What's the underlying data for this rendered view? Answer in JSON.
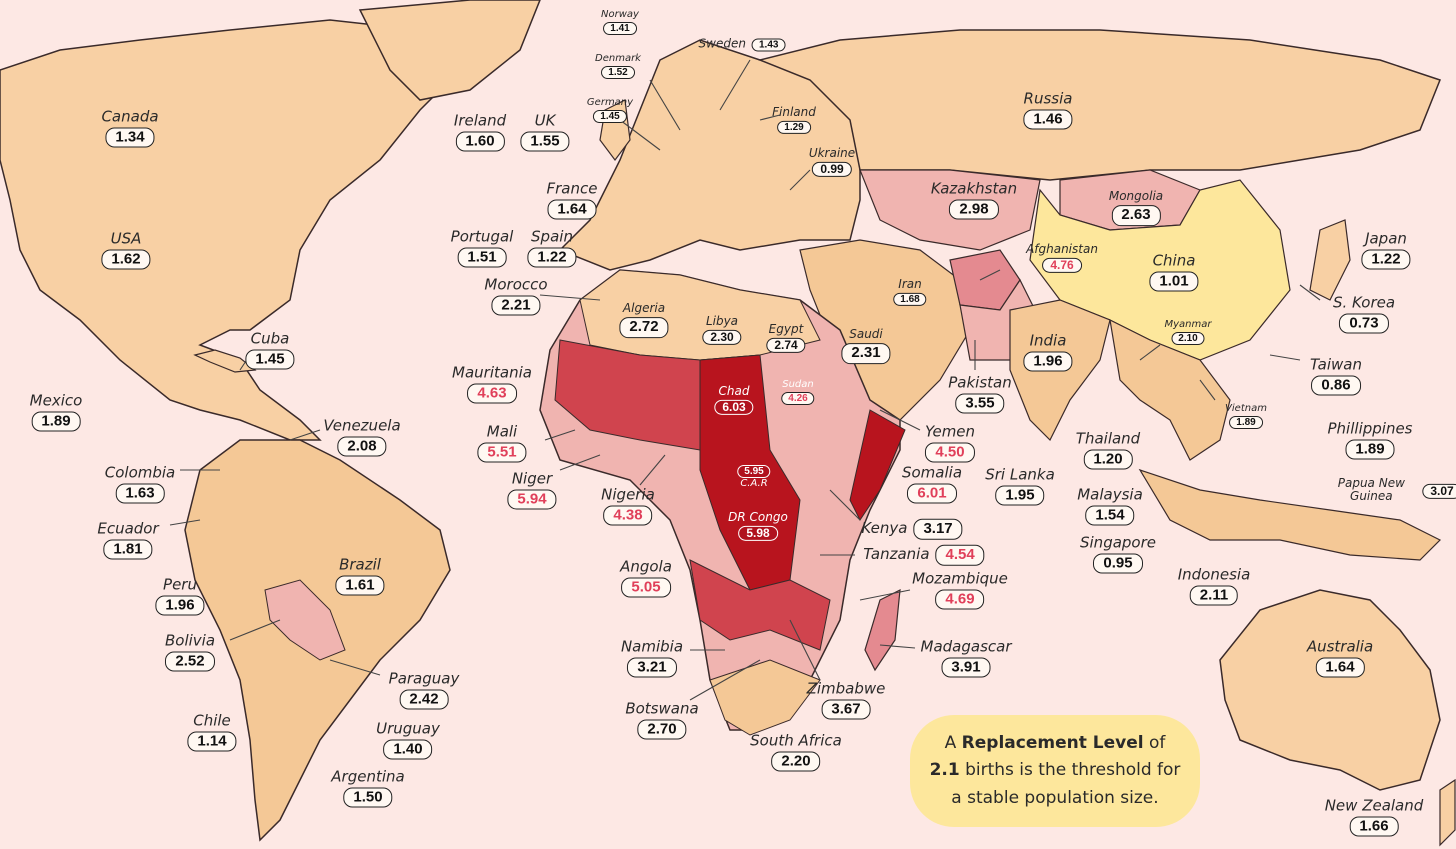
{
  "colors": {
    "ocean": "#fde8e4",
    "below_replacement": "#f8d0a4",
    "low": "#f4c896",
    "mid": "#f0b4b0",
    "high": "#e48a90",
    "very_high": "#d0444e",
    "extreme": "#b8141e",
    "border": "#3a2a2a",
    "callout": "#fde79c",
    "highlight_text": "#e0405a"
  },
  "countries": [
    {
      "name": "Canada",
      "value": "1.34"
    },
    {
      "name": "USA",
      "value": "1.62"
    },
    {
      "name": "Mexico",
      "value": "1.89"
    },
    {
      "name": "Cuba",
      "value": "1.45"
    },
    {
      "name": "Venezuela",
      "value": "2.08"
    },
    {
      "name": "Colombia",
      "value": "1.63"
    },
    {
      "name": "Ecuador",
      "value": "1.81"
    },
    {
      "name": "Peru",
      "value": "1.96"
    },
    {
      "name": "Brazil",
      "value": "1.61"
    },
    {
      "name": "Bolivia",
      "value": "2.52"
    },
    {
      "name": "Paraguay",
      "value": "2.42"
    },
    {
      "name": "Chile",
      "value": "1.14"
    },
    {
      "name": "Uruguay",
      "value": "1.40"
    },
    {
      "name": "Argentina",
      "value": "1.50"
    },
    {
      "name": "Norway",
      "value": "1.41"
    },
    {
      "name": "Denmark",
      "value": "1.52"
    },
    {
      "name": "Sweden",
      "value": "1.43"
    },
    {
      "name": "Germany",
      "value": "1.45"
    },
    {
      "name": "Finland",
      "value": "1.29"
    },
    {
      "name": "Ireland",
      "value": "1.60"
    },
    {
      "name": "UK",
      "value": "1.55"
    },
    {
      "name": "Ukraine",
      "value": "0.99"
    },
    {
      "name": "France",
      "value": "1.64"
    },
    {
      "name": "Portugal",
      "value": "1.51"
    },
    {
      "name": "Spain",
      "value": "1.22"
    },
    {
      "name": "Russia",
      "value": "1.46"
    },
    {
      "name": "Kazakhstan",
      "value": "2.98"
    },
    {
      "name": "Mongolia",
      "value": "2.63"
    },
    {
      "name": "Afghanistan",
      "value": "4.76"
    },
    {
      "name": "China",
      "value": "1.01"
    },
    {
      "name": "Japan",
      "value": "1.22"
    },
    {
      "name": "S. Korea",
      "value": "0.73"
    },
    {
      "name": "Iran",
      "value": "1.68"
    },
    {
      "name": "Myanmar",
      "value": "2.10"
    },
    {
      "name": "India",
      "value": "1.96"
    },
    {
      "name": "Taiwan",
      "value": "0.86"
    },
    {
      "name": "Pakistan",
      "value": "3.55"
    },
    {
      "name": "Vietnam",
      "value": "1.89"
    },
    {
      "name": "Phillippines",
      "value": "1.89"
    },
    {
      "name": "Thailand",
      "value": "1.20"
    },
    {
      "name": "Sri Lanka",
      "value": "1.95"
    },
    {
      "name": "Malaysia",
      "value": "1.54"
    },
    {
      "name": "Papua New Guinea",
      "value": "3.07"
    },
    {
      "name": "Singapore",
      "value": "0.95"
    },
    {
      "name": "Indonesia",
      "value": "2.11"
    },
    {
      "name": "Morocco",
      "value": "2.21"
    },
    {
      "name": "Algeria",
      "value": "2.72"
    },
    {
      "name": "Libya",
      "value": "2.30"
    },
    {
      "name": "Egypt",
      "value": "2.74"
    },
    {
      "name": "Saudi",
      "value": "2.31"
    },
    {
      "name": "Mauritania",
      "value": "4.63"
    },
    {
      "name": "Chad",
      "value": "6.03"
    },
    {
      "name": "Sudan",
      "value": "4.26"
    },
    {
      "name": "Mali",
      "value": "5.51"
    },
    {
      "name": "Yemen",
      "value": "4.50"
    },
    {
      "name": "C.A.R",
      "value": "5.95"
    },
    {
      "name": "Niger",
      "value": "5.94"
    },
    {
      "name": "Somalia",
      "value": "6.01"
    },
    {
      "name": "Nigeria",
      "value": "4.38"
    },
    {
      "name": "DR Congo",
      "value": "5.98"
    },
    {
      "name": "Kenya",
      "value": "3.17"
    },
    {
      "name": "Tanzania",
      "value": "4.54"
    },
    {
      "name": "Angola",
      "value": "5.05"
    },
    {
      "name": "Mozambique",
      "value": "4.69"
    },
    {
      "name": "Namibia",
      "value": "3.21"
    },
    {
      "name": "Madagascar",
      "value": "3.91"
    },
    {
      "name": "Zimbabwe",
      "value": "3.67"
    },
    {
      "name": "Botswana",
      "value": "2.70"
    },
    {
      "name": "South Africa",
      "value": "2.20"
    },
    {
      "name": "Australia",
      "value": "1.64"
    },
    {
      "name": "New Zealand",
      "value": "1.66"
    }
  ],
  "callout": {
    "prefix": "A ",
    "bold1": "Replacement Level",
    "mid1": " of",
    "bold2": "2.1",
    "mid2": " births is the threshold for",
    "line3": "a stable population size."
  }
}
